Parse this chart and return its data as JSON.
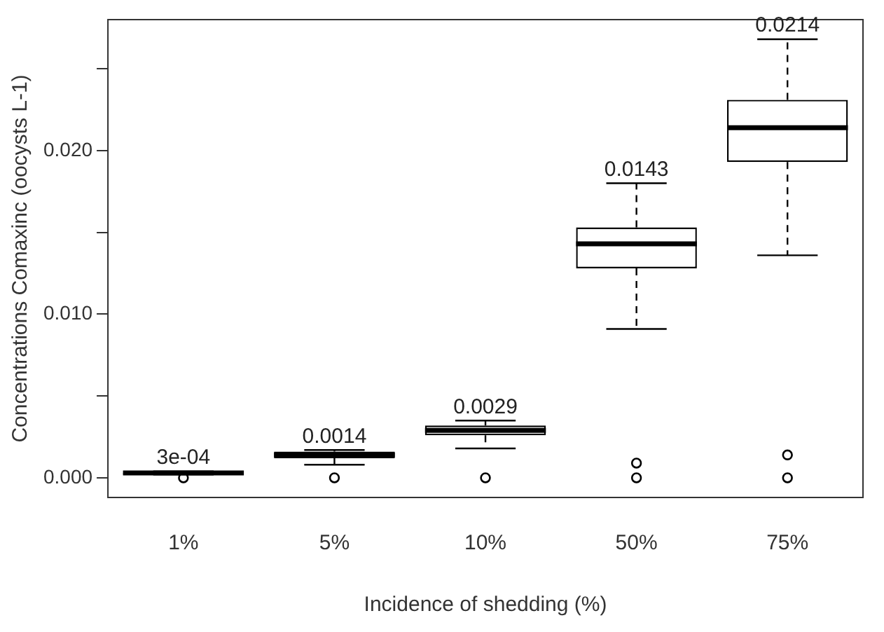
{
  "chart_data": {
    "type": "box",
    "xlabel": "Incidence of shedding (%)",
    "ylabel": "Concentrations Comaxinc (oocysts L-1)",
    "categories": [
      "1%",
      "5%",
      "10%",
      "50%",
      "75%"
    ],
    "boxes": [
      {
        "low": 0.0002,
        "q1": 0.0002,
        "median": 0.0003,
        "q3": 0.0003,
        "high": 0.0004,
        "outliers": [
          0
        ]
      },
      {
        "low": 0.0008,
        "q1": 0.0012,
        "median": 0.0014,
        "q3": 0.0016,
        "high": 0.0017,
        "outliers": [
          0
        ]
      },
      {
        "low": 0.0018,
        "q1": 0.0026,
        "median": 0.0029,
        "q3": 0.0032,
        "high": 0.0035,
        "outliers": [
          0
        ]
      },
      {
        "low": 0.0091,
        "q1": 0.0128,
        "median": 0.0143,
        "q3": 0.0153,
        "high": 0.018,
        "outliers": [
          0.0009,
          0
        ]
      },
      {
        "low": 0.0136,
        "q1": 0.0193,
        "median": 0.0214,
        "q3": 0.0231,
        "high": 0.0268,
        "outliers": [
          0.0014,
          0
        ]
      }
    ],
    "color": "#000000",
    "ylim": [
      -0.0012,
      0.028
    ],
    "yticks": [
      {
        "value": 0,
        "label": "0.000"
      },
      {
        "value": 0.005,
        "label": null
      },
      {
        "value": 0.01,
        "label": "0.010"
      },
      {
        "value": 0.015,
        "label": null
      },
      {
        "value": 0.02,
        "label": "0.020"
      },
      {
        "value": 0.025,
        "label": null
      }
    ],
    "grid": false,
    "legend": false,
    "marker": "circle",
    "annotations": [
      {
        "text": "3e-04",
        "x": "1%",
        "y": 0.0004
      },
      {
        "text": "0.0014",
        "x": "5%",
        "y": 0.0017
      },
      {
        "text": "0.0029",
        "x": "10%",
        "y": 0.0035
      },
      {
        "text": "0.0143",
        "x": "50%",
        "y": 0.018
      },
      {
        "text": "0.0214",
        "x": "75%",
        "y": 0.0268
      }
    ]
  }
}
